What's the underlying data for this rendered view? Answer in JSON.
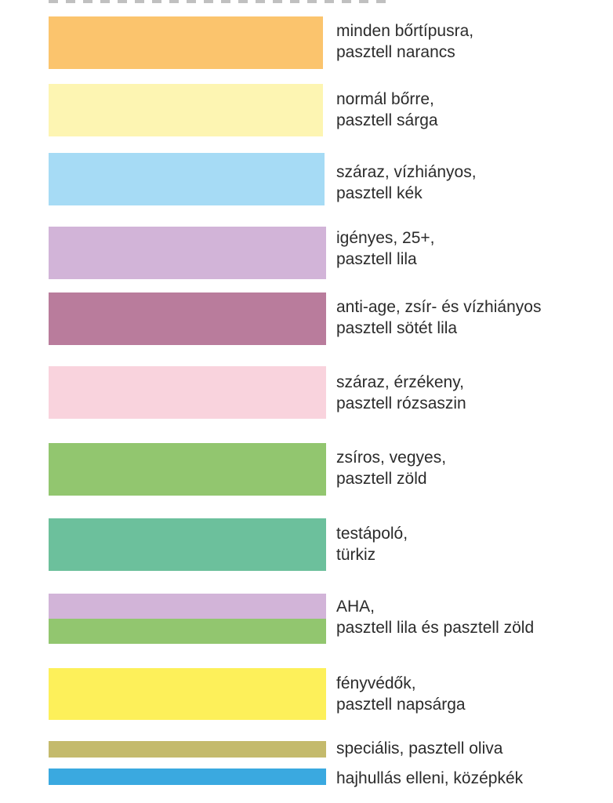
{
  "legend": [
    {
      "color": "#fbc46d",
      "line1": "minden bőrtípusra,",
      "line2": "pasztell narancs"
    },
    {
      "color": "#fdf5b2",
      "line1": "normál bőrre,",
      "line2": "pasztell sárga"
    },
    {
      "color": "#a6dbf5",
      "line1": "száraz, vízhiányos,",
      "line2": "pasztell kék"
    },
    {
      "color": "#d2b4d8",
      "line1": "igényes, 25+,",
      "line2": "pasztell lila"
    },
    {
      "color": "#b97c9c",
      "line1": "anti-age, zsír- és vízhiányos",
      "line2": "pasztell sötét lila"
    },
    {
      "color": "#f9d3dd",
      "line1": "száraz, érzékeny,",
      "line2": "pasztell rózsaszin"
    },
    {
      "color": "#92c66f",
      "line1": "zsíros, vegyes,",
      "line2": "pasztell zöld"
    },
    {
      "color": "#6cc09c",
      "line1": "testápoló,",
      "line2": "türkiz"
    },
    {
      "color_top": "#d2b4d8",
      "color_bottom": "#92c66f",
      "line1": "AHA,",
      "line2": "pasztell lila és pasztell zöld"
    },
    {
      "color": "#fdf05a",
      "line1": "fényvédők,",
      "line2": "pasztell napsárga"
    },
    {
      "color": "#c4ba6c",
      "line1": "speciális, pasztell oliva"
    },
    {
      "color": "#3aa9e0",
      "line1": "hajhullás elleni, középkék"
    }
  ]
}
